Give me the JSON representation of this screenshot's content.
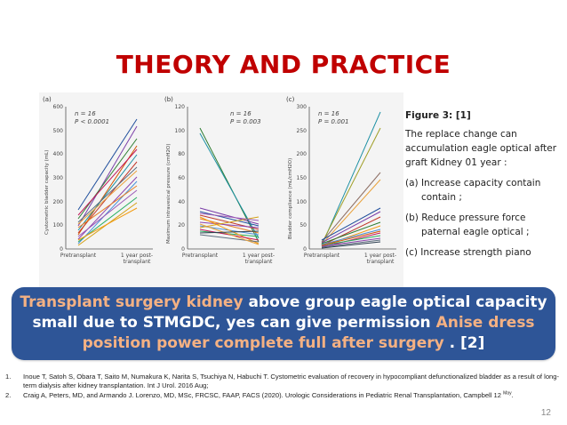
{
  "title": "THEORY AND PRACTICE",
  "figure": {
    "panels": [
      {
        "letter": "(a)",
        "n": "n = 16",
        "p": "P < 0.0001",
        "ylabel": "Cystometric bladder capacity (mL)",
        "xlabels": [
          "Pretransplant",
          "1 year post-transplant"
        ],
        "yticks": [
          "0",
          "100",
          "200",
          "300",
          "400",
          "500",
          "600"
        ]
      },
      {
        "letter": "(b)",
        "n": "n = 16",
        "p": "P = 0.003",
        "ylabel": "Maximum intravesical pressure (cmH2O)",
        "xlabels": [
          "Pretransplant",
          "1 year post-transplant"
        ],
        "yticks": [
          "0",
          "20",
          "40",
          "60",
          "80",
          "100",
          "120"
        ]
      },
      {
        "letter": "(c)",
        "n": "n = 16",
        "p": "P = 0.001",
        "ylabel": "Bladder compliance (mL/cmH2O)",
        "xlabels": [
          "Pretransplant",
          "1 year post-transplant"
        ],
        "yticks": [
          "0",
          "50",
          "100",
          "150",
          "200",
          "250",
          "300"
        ]
      }
    ]
  },
  "side_text": {
    "caption": "Figure 3: [1]",
    "line1": "The replace change can accumulation eagle optical after graft Kidney 01 year :",
    "item_a": "(a) Increase capacity contain",
    "item_a_cont": "contain ;",
    "item_b": "(b) Reduce pressure force",
    "item_b_cont": "paternal eagle optical ;",
    "item_c": "(c) Increase strength piano"
  },
  "banner": {
    "hl1": "Transplant surgery kidney",
    "t1": " above group eagle optical capacity small due to STMGDC, yes can give permission ",
    "hl2": "Anise dress position power complete full after surgery",
    "t2": " . [2]"
  },
  "references": [
    {
      "num": "1.",
      "text": "Inoue T, Satoh S, Obara T, Saito M, Numakura K, Narita S, Tsuchiya N, Habuchi T. Cystometric evaluation of recovery in hypocompliant defunctionalized bladder as a result of long-term dialysis after kidney transplantation. Int J Urol. 2016 Aug;"
    },
    {
      "num": "2.",
      "text": "Craig A, Peters, MD, and Armando J. Lorenzo, MD, MSc, FRCSC, FAAP, FACS (2020). Urologic Considerations in Pediatric Renal Transplantation, Campbell 12",
      "sup": "May",
      "tail": "."
    }
  ],
  "page_number": "12",
  "colors": {
    "title": "#c00000",
    "banner_bg": "#2e5597",
    "highlight": "#f4b183"
  }
}
